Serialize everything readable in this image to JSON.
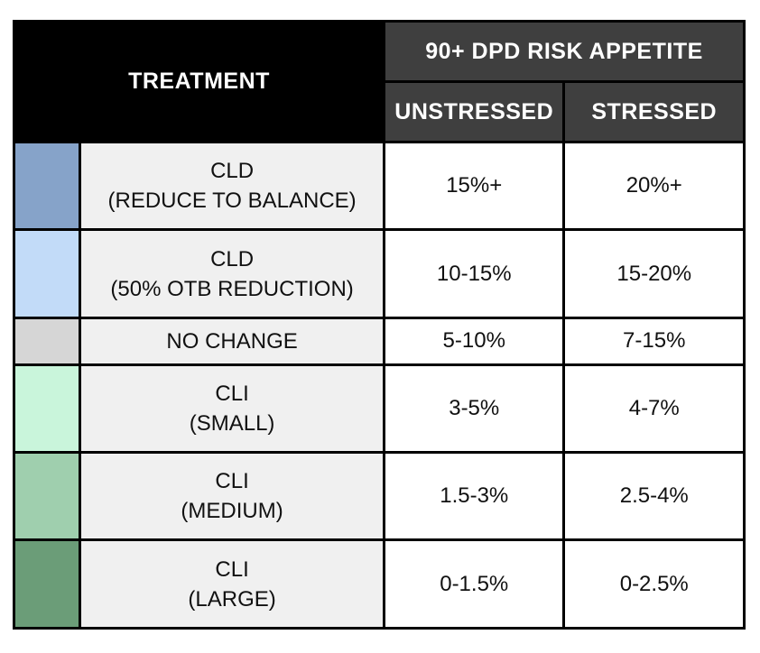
{
  "header": {
    "treatment": "TREATMENT",
    "appetite": "90+ DPD RISK APPETITE",
    "unstressed": "UNSTRESSED",
    "stressed": "STRESSED"
  },
  "rows": [
    {
      "line1": "CLD",
      "line2": "(REDUCE TO BALANCE)",
      "unstressed": "15%+",
      "stressed": "20%+",
      "color": "#86a3c9"
    },
    {
      "line1": "CLD",
      "line2": "(50% OTB REDUCTION)",
      "unstressed": "10-15%",
      "stressed": "15-20%",
      "color": "#c2dbf8"
    },
    {
      "line1": "NO CHANGE",
      "line2": "",
      "unstressed": "5-10%",
      "stressed": "7-15%",
      "color": "#d6d6d6"
    },
    {
      "line1": "CLI",
      "line2": "(SMALL)",
      "unstressed": "3-5%",
      "stressed": "4-7%",
      "color": "#c9f5db"
    },
    {
      "line1": "CLI",
      "line2": "(MEDIUM)",
      "unstressed": "1.5-3%",
      "stressed": "2.5-4%",
      "color": "#9fcfae"
    },
    {
      "line1": "CLI",
      "line2": "(LARGE)",
      "unstressed": "0-1.5%",
      "stressed": "0-2.5%",
      "color": "#6b9d78"
    }
  ]
}
